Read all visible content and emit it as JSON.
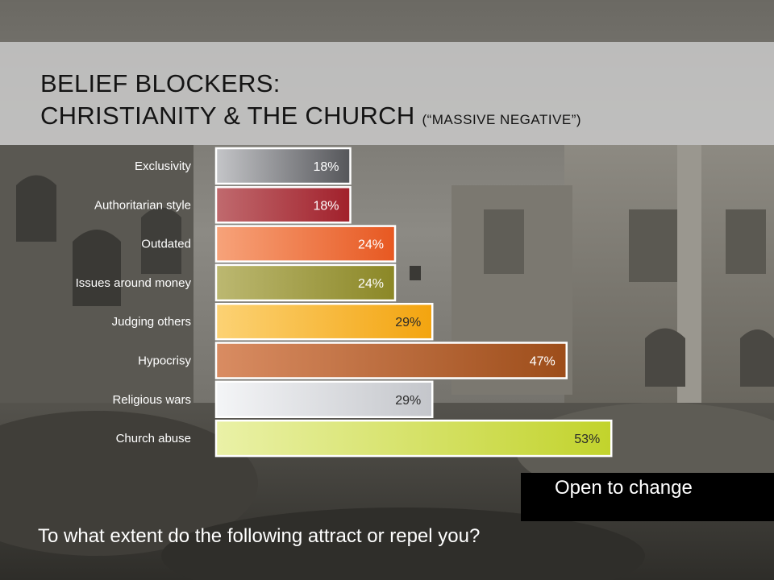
{
  "title": {
    "line1": "BELIEF BLOCKERS:",
    "line2": "CHRISTIANITY & THE CHURCH",
    "subtitle": "(“MASSIVE NEGATIVE”)"
  },
  "callout": {
    "text": "Open to change"
  },
  "question": "To what extent do the following attract or repel you?",
  "chart_data": {
    "type": "bar",
    "orientation": "horizontal",
    "categories": [
      "Exclusivity",
      "Authoritarian style",
      "Outdated",
      "Issues around money",
      "Judging others",
      "Hypocrisy",
      "Religious wars",
      "Church abuse"
    ],
    "values": [
      18,
      18,
      24,
      24,
      29,
      47,
      29,
      53
    ],
    "value_labels": [
      "18%",
      "18%",
      "24%",
      "24%",
      "29%",
      "47%",
      "29%",
      "53%"
    ],
    "unit": "%",
    "colors": [
      {
        "light": "#c4c5c8",
        "dark": "#55565a"
      },
      {
        "light": "#c06a6e",
        "dark": "#a1202b"
      },
      {
        "light": "#f7a37a",
        "dark": "#e75821"
      },
      {
        "light": "#bcb871",
        "dark": "#8b8726"
      },
      {
        "light": "#fcd274",
        "dark": "#f3a40f"
      },
      {
        "light": "#d98c62",
        "dark": "#9d4d1a"
      },
      {
        "light": "#f4f5f7",
        "dark": "#c4c6cb"
      },
      {
        "light": "#eaf1a7",
        "dark": "#c2d32c"
      }
    ],
    "dark_value_label": [
      false,
      false,
      false,
      false,
      true,
      false,
      true,
      true
    ],
    "xlim": [
      0,
      100
    ],
    "grid": false,
    "legend": "none"
  }
}
